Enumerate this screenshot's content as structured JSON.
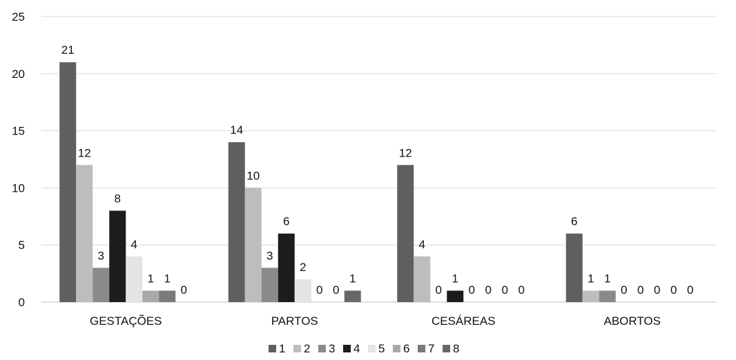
{
  "chart_data": {
    "type": "bar",
    "categories": [
      "GESTAÇÕES",
      "PARTOS",
      "CESÁREAS",
      "ABORTOS"
    ],
    "series": [
      {
        "name": "1",
        "color": "#5f5f5f",
        "values": [
          21,
          14,
          12,
          6
        ]
      },
      {
        "name": "2",
        "color": "#bdbdbd",
        "values": [
          12,
          10,
          4,
          1
        ]
      },
      {
        "name": "3",
        "color": "#8a8a8a",
        "values": [
          3,
          3,
          0,
          1
        ]
      },
      {
        "name": "4",
        "color": "#1c1c1c",
        "values": [
          8,
          6,
          1,
          0
        ]
      },
      {
        "name": "5",
        "color": "#e4e4e4",
        "values": [
          4,
          2,
          0,
          0
        ]
      },
      {
        "name": "6",
        "color": "#a9a9a9",
        "values": [
          1,
          0,
          0,
          0
        ]
      },
      {
        "name": "7",
        "color": "#7a7a7a",
        "values": [
          1,
          0,
          0,
          0
        ]
      },
      {
        "name": "8",
        "color": "#676767",
        "values": [
          0,
          1,
          0,
          0
        ]
      }
    ],
    "ylim": [
      0,
      25
    ],
    "yticks": [
      0,
      5,
      10,
      15,
      20,
      25
    ],
    "grid": true,
    "legend": "bottom-center",
    "data_labels": true
  }
}
